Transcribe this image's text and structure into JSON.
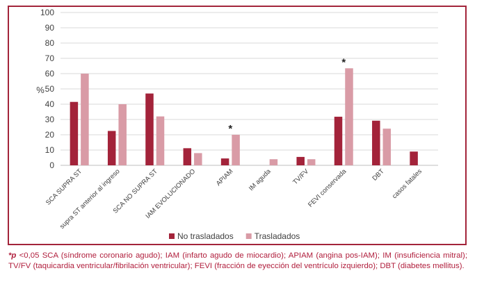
{
  "chart_data": {
    "type": "bar",
    "ylabel": "%",
    "ylim": [
      0,
      100
    ],
    "yticks": [
      0,
      10,
      20,
      30,
      40,
      50,
      60,
      70,
      80,
      90,
      100
    ],
    "categories": [
      "SCA SUPRA ST",
      "supra ST anterior al ingreso",
      "SCA NO SUPRA ST",
      "IAM EVOLUCIONADO",
      "APIAM",
      "IM aguda",
      "TV/FV",
      "FEVI conservada",
      "DBT",
      "casos fatales"
    ],
    "series": [
      {
        "name": "No trasladados",
        "color": "#a3233a",
        "values": [
          41.5,
          22.5,
          47,
          11.2,
          4.5,
          0,
          5.5,
          31.8,
          29.2,
          9
        ]
      },
      {
        "name": "Trasladados",
        "color": "#d99ba6",
        "values": [
          60,
          40,
          32,
          8,
          20,
          4,
          4,
          63.5,
          24,
          0
        ]
      }
    ],
    "annotations": [
      {
        "category": "APIAM",
        "text": "*"
      },
      {
        "category": "FEVI conservada",
        "text": "*"
      }
    ],
    "grid": true,
    "legend_position": "bottom"
  },
  "caption": {
    "marker": "*p",
    "text": " <0,05 SCA (síndrome coronario agudo); IAM (infarto agudo de miocardio); APIAM (angina pos-IAM); IM (insuficiencia mitral); TV/FV (taquicardia ventricular/fibrilación ventricular); FEVI (fracción de eyección del ventrículo izquierdo); DBT (diabetes mellitus)."
  }
}
